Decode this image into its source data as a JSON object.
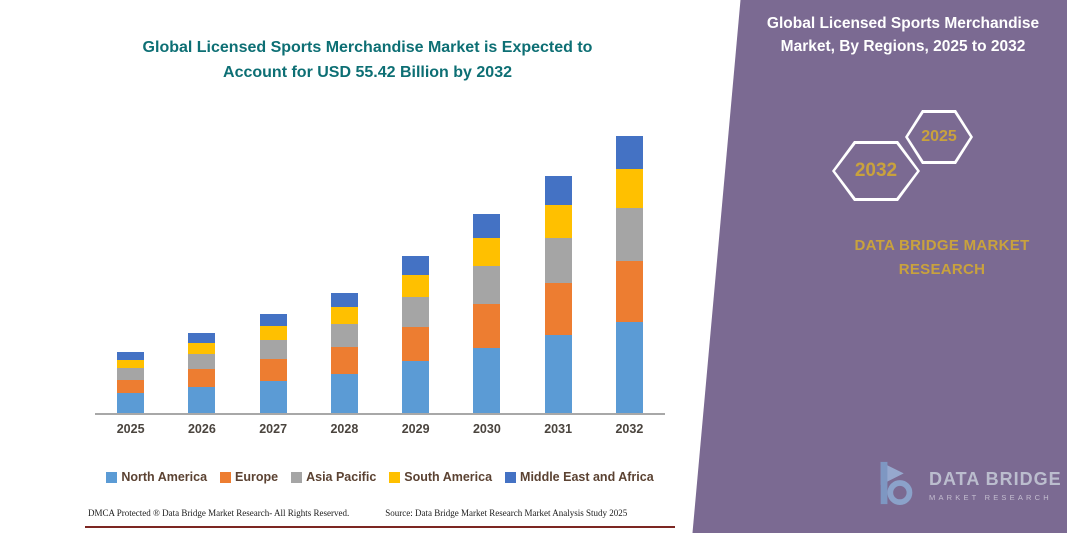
{
  "left": {
    "title_line1": "Global Licensed Sports Merchandise Market is Expected to",
    "title_line2": "Account for USD 55.42 Billion by 2032",
    "title_color": "#0d6f74",
    "footer_left": "DMCA Protected ® Data Bridge Market Research-  All Rights Reserved.",
    "footer_source": "Source: Data Bridge Market Research  Market Analysis Study 2025",
    "footer_line_color": "#7c2622"
  },
  "right_panel": {
    "background": "#7b6a92",
    "gold": "#c9a23d",
    "heading_line1": "Global Licensed Sports Merchandise",
    "heading_line2": "Market, By Regions, 2025 to 2032",
    "hexagon_back_year": "2032",
    "hexagon_front_year": "2025",
    "brand_line1": "DATA BRIDGE MARKET",
    "brand_line2": "RESEARCH",
    "logo_name": "DATA BRIDGE",
    "logo_subtitle": "MARKET RESEARCH"
  },
  "chart_data": {
    "type": "bar",
    "stacked": true,
    "title": "Global Licensed Sports Merchandise Market is Expected to Account for USD 55.42 Billion by 2032",
    "xlabel": "",
    "ylabel": "",
    "ylim": [
      0,
      60
    ],
    "y_axis_visible": false,
    "grid": false,
    "legend_position": "bottom",
    "categories": [
      "2025",
      "2026",
      "2027",
      "2028",
      "2029",
      "2030",
      "2031",
      "2032"
    ],
    "series": [
      {
        "name": "North America",
        "color": "#5B9BD5",
        "values": [
          4.0,
          5.3,
          6.5,
          7.9,
          10.4,
          13.1,
          15.6,
          18.3
        ]
      },
      {
        "name": "Europe",
        "color": "#ED7D31",
        "values": [
          2.7,
          3.5,
          4.4,
          5.3,
          6.9,
          8.8,
          10.4,
          12.2
        ]
      },
      {
        "name": "Asia Pacific",
        "color": "#A5A5A5",
        "values": [
          2.3,
          3.0,
          3.8,
          4.6,
          6.0,
          7.6,
          9.0,
          10.5
        ]
      },
      {
        "name": "South America",
        "color": "#FFC000",
        "values": [
          1.7,
          2.2,
          2.8,
          3.4,
          4.4,
          5.6,
          6.6,
          7.8
        ]
      },
      {
        "name": "Middle East and Africa",
        "color": "#4472C4",
        "values": [
          1.5,
          2.0,
          2.3,
          2.8,
          3.7,
          4.7,
          5.8,
          6.62
        ]
      }
    ],
    "totals": [
      12.2,
      16.0,
      19.8,
      24.0,
      31.4,
      39.8,
      47.4,
      55.42
    ]
  }
}
